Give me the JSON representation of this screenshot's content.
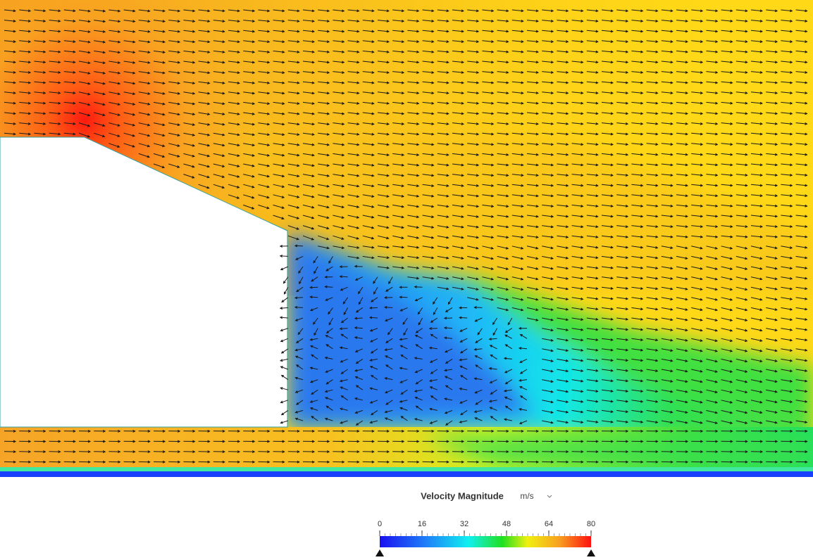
{
  "legend": {
    "title": "Velocity Magnitude",
    "unit": "m/s",
    "range": [
      0,
      80
    ],
    "ticks": [
      0,
      16,
      32,
      48,
      64,
      80
    ]
  }
}
